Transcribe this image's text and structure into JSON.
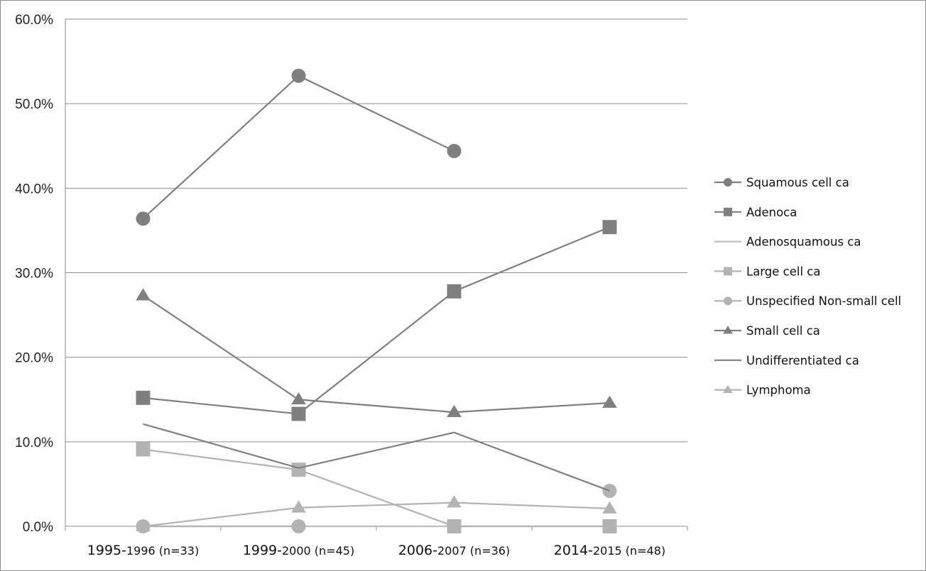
{
  "chart_data": {
    "type": "line",
    "title": "",
    "xlabel": "",
    "ylabel": "",
    "categories": [
      {
        "main": "1995-",
        "sub": "1996 (n=33)"
      },
      {
        "main": "1999-",
        "sub": "2000 (n=45)"
      },
      {
        "main": "2006-",
        "sub": "2007 (n=36)"
      },
      {
        "main": "2014-",
        "sub": "2015 (n=48)"
      }
    ],
    "ylim": [
      0,
      60
    ],
    "yticks": [
      0,
      10,
      20,
      30,
      40,
      50,
      60
    ],
    "ytick_labels": [
      "0.0%",
      "10.0%",
      "20.0%",
      "30.0%",
      "40.0%",
      "50.0%",
      "60.0%"
    ],
    "grid": "horizontal",
    "legend_position": "right",
    "series": [
      {
        "name": "Squamous cell ca",
        "values": [
          36.4,
          53.3,
          44.4,
          null
        ],
        "color": "#7f7f7f",
        "marker": "circle"
      },
      {
        "name": "Adenoca",
        "values": [
          15.2,
          13.3,
          27.8,
          35.4
        ],
        "color": "#7f7f7f",
        "marker": "square"
      },
      {
        "name": "Adenosquamous ca",
        "values": [
          0,
          0,
          0,
          0
        ],
        "color": "#bdbdbd",
        "marker": "none"
      },
      {
        "name": "Large cell ca",
        "values": [
          9.1,
          6.7,
          0,
          0
        ],
        "color": "#b3b3b3",
        "marker": "square"
      },
      {
        "name": "Unspecified Non-small cell",
        "values": [
          0,
          0,
          null,
          4.2
        ],
        "color": "#b3b3b3",
        "marker": "circle"
      },
      {
        "name": "Small cell ca",
        "values": [
          27.3,
          15.0,
          13.5,
          14.6
        ],
        "color": "#7f7f7f",
        "marker": "triangle"
      },
      {
        "name": "Undifferentiated ca",
        "values": [
          12.1,
          6.9,
          11.1,
          4.2
        ],
        "color": "#7f7f7f",
        "marker": "none"
      },
      {
        "name": "Lymphoma",
        "values": [
          0,
          2.2,
          2.8,
          2.1
        ],
        "color": "#b3b3b3",
        "marker": "triangle"
      }
    ]
  }
}
